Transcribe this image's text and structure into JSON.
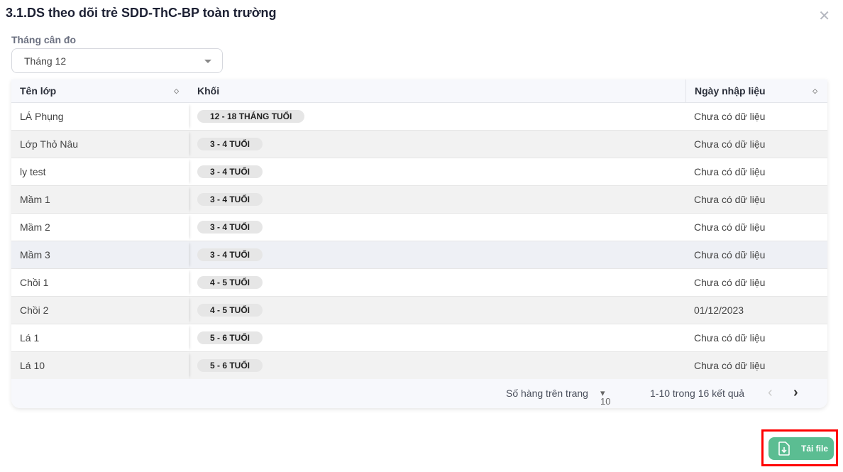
{
  "title": "3.1.DS theo dõi trẻ SDD-ThC-BP toàn trường",
  "filter": {
    "label": "Tháng cân đo",
    "value": "Tháng 12"
  },
  "table": {
    "headers": [
      "Tên lớp",
      "Khối",
      "Ngày nhập liệu"
    ],
    "rows": [
      {
        "name": "LÁ Phụng",
        "grade": "12 - 18 THÁNG TUỔI",
        "date": "Chưa có dữ liệu"
      },
      {
        "name": "Lớp Thỏ Nâu",
        "grade": "3 - 4 TUỔI",
        "date": "Chưa có dữ liệu"
      },
      {
        "name": "ly test",
        "grade": "3 - 4 TUỔI",
        "date": "Chưa có dữ liệu"
      },
      {
        "name": "Mầm 1",
        "grade": "3 - 4 TUỔI",
        "date": "Chưa có dữ liệu"
      },
      {
        "name": "Mầm 2",
        "grade": "3 - 4 TUỔI",
        "date": "Chưa có dữ liệu"
      },
      {
        "name": "Mầm 3",
        "grade": "3 - 4 TUỔI",
        "date": "Chưa có dữ liệu"
      },
      {
        "name": "Chồi 1",
        "grade": "4 - 5 TUỔI",
        "date": "Chưa có dữ liệu"
      },
      {
        "name": "Chồi 2",
        "grade": "4 - 5 TUỔI",
        "date": "01/12/2023"
      },
      {
        "name": "Lá 1",
        "grade": "5 - 6 TUỔI",
        "date": "Chưa có dữ liệu"
      },
      {
        "name": "Lá 10",
        "grade": "5 - 6 TUỔI",
        "date": "Chưa có dữ liệu"
      }
    ]
  },
  "pagination": {
    "rows_label": "Số hàng trên trang",
    "rows_value": "10",
    "range": "1-10 trong 16 kết quả"
  },
  "download": {
    "label": "Tải file",
    "color": "#5bbd92"
  }
}
